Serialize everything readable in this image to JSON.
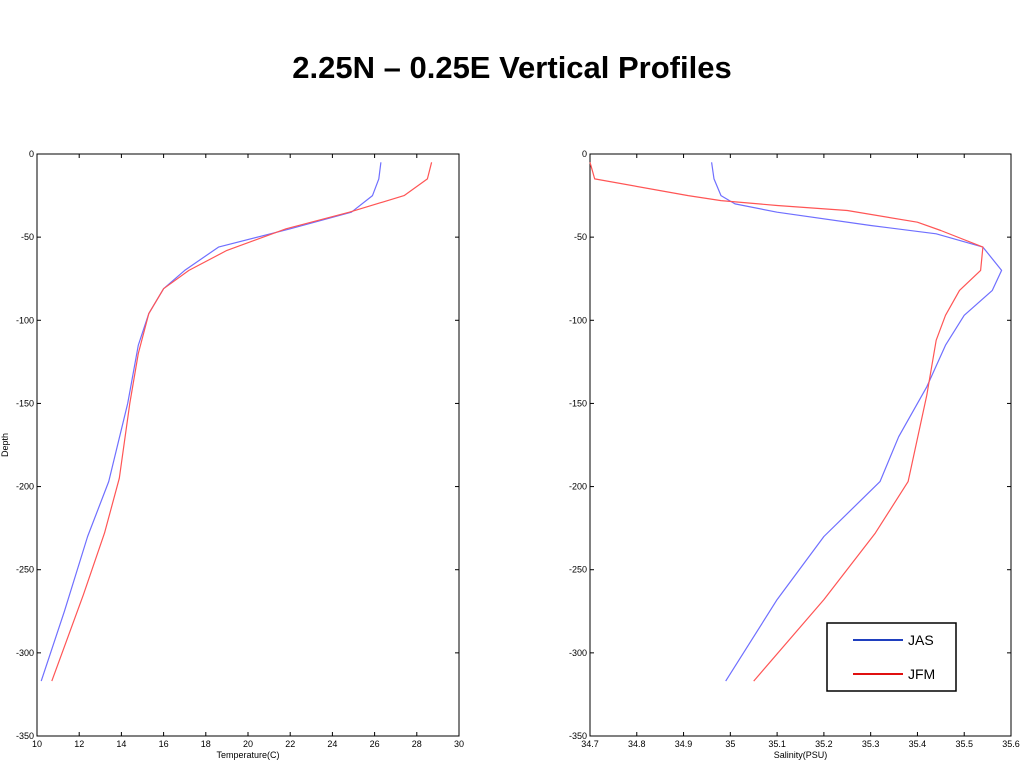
{
  "title": "2.25N – 0.25E Vertical Profiles",
  "chart_data": [
    {
      "type": "line",
      "xlabel": "Temperature(C)",
      "ylabel": "Depth",
      "xlim": [
        10,
        30
      ],
      "ylim": [
        -350,
        0
      ],
      "xticks": [
        10,
        12,
        14,
        16,
        18,
        20,
        22,
        24,
        26,
        28,
        30
      ],
      "yticks": [
        0,
        -50,
        -100,
        -150,
        -200,
        -250,
        -300,
        -350
      ],
      "grid": false,
      "series": [
        {
          "name": "JAS",
          "color": "#6f6fff",
          "points": [
            [
              26.3,
              -5
            ],
            [
              26.2,
              -15
            ],
            [
              25.9,
              -25
            ],
            [
              24.9,
              -35
            ],
            [
              22.0,
              -45
            ],
            [
              18.6,
              -56
            ],
            [
              17.0,
              -70
            ],
            [
              16.0,
              -81
            ],
            [
              15.3,
              -96
            ],
            [
              14.8,
              -115
            ],
            [
              14.3,
              -150
            ],
            [
              13.4,
              -197
            ],
            [
              12.4,
              -230
            ],
            [
              11.3,
              -275
            ],
            [
              10.2,
              -317
            ]
          ]
        },
        {
          "name": "JFM",
          "color": "#ff5555",
          "points": [
            [
              28.7,
              -5
            ],
            [
              28.5,
              -15
            ],
            [
              27.4,
              -25
            ],
            [
              24.8,
              -35
            ],
            [
              21.8,
              -45
            ],
            [
              19.0,
              -58
            ],
            [
              17.2,
              -70
            ],
            [
              16.0,
              -81
            ],
            [
              15.3,
              -96
            ],
            [
              14.8,
              -120
            ],
            [
              14.4,
              -150
            ],
            [
              13.9,
              -195
            ],
            [
              13.2,
              -228
            ],
            [
              12.2,
              -265
            ],
            [
              10.7,
              -317
            ]
          ]
        }
      ]
    },
    {
      "type": "line",
      "xlabel": "Salinity(PSU)",
      "ylabel": "",
      "xlim": [
        34.7,
        35.6
      ],
      "ylim": [
        -350,
        0
      ],
      "xticks": [
        34.7,
        34.8,
        34.9,
        35,
        35.1,
        35.2,
        35.3,
        35.4,
        35.5,
        35.6
      ],
      "yticks": [
        0,
        -50,
        -100,
        -150,
        -200,
        -250,
        -300,
        -350
      ],
      "grid": false,
      "legend": "bottom-right",
      "series": [
        {
          "name": "JAS",
          "legend_color": "#1f3fbf",
          "color": "#6f6fff",
          "points": [
            [
              34.96,
              -5
            ],
            [
              34.965,
              -15
            ],
            [
              34.98,
              -25
            ],
            [
              35.01,
              -30
            ],
            [
              35.1,
              -35
            ],
            [
              35.3,
              -43
            ],
            [
              35.44,
              -48
            ],
            [
              35.54,
              -56
            ],
            [
              35.58,
              -70
            ],
            [
              35.56,
              -82
            ],
            [
              35.5,
              -97
            ],
            [
              35.46,
              -115
            ],
            [
              35.42,
              -140
            ],
            [
              35.36,
              -170
            ],
            [
              35.32,
              -197
            ],
            [
              35.2,
              -230
            ],
            [
              35.1,
              -268
            ],
            [
              34.99,
              -317
            ]
          ]
        },
        {
          "name": "JFM",
          "legend_color": "#e01010",
          "color": "#ff5555",
          "points": [
            [
              34.7,
              -5
            ],
            [
              34.71,
              -15
            ],
            [
              34.85,
              -22
            ],
            [
              34.91,
              -25
            ],
            [
              34.98,
              -28
            ],
            [
              35.1,
              -31
            ],
            [
              35.25,
              -34
            ],
            [
              35.4,
              -41
            ],
            [
              35.45,
              -46
            ],
            [
              35.54,
              -56
            ],
            [
              35.535,
              -70
            ],
            [
              35.49,
              -82
            ],
            [
              35.46,
              -97
            ],
            [
              35.44,
              -112
            ],
            [
              35.42,
              -145
            ],
            [
              35.38,
              -197
            ],
            [
              35.31,
              -228
            ],
            [
              35.2,
              -268
            ],
            [
              35.05,
              -317
            ]
          ]
        }
      ]
    }
  ]
}
